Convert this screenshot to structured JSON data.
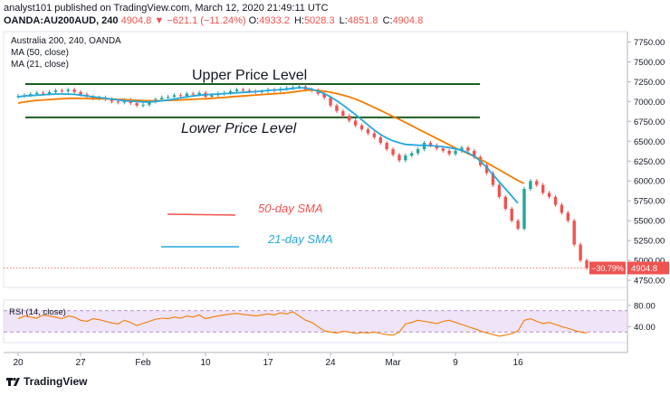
{
  "header": {
    "publisher": "analyst101 published on TradingView.com, March 12, 2020 21:49:11 UTC",
    "symbol": "OANDA:AU200AUD, 240",
    "last": "4904.8",
    "change": "−621.1 (−11.24%)",
    "o_label": "O:",
    "o": "4933.2",
    "h_label": "H:",
    "h": "5028.3",
    "l_label": "L:",
    "l": "4851.8",
    "c_label": "C:",
    "c": "4904.8"
  },
  "legend": {
    "title": "Australia 200, 240, OANDA",
    "ma50": "MA (50, close)",
    "ma21": "MA (21, close)",
    "rsi": "RSI (14, close)"
  },
  "annotations": {
    "upper": "Upper  Price Level",
    "lower": "Lower Price Level",
    "sma50": "50-day SMA",
    "sma21": "21-day SMA"
  },
  "price_label": {
    "pct": "−30.79%",
    "value": "4904.8"
  },
  "branding": "TradingView",
  "colors": {
    "up": "#26a69a",
    "down": "#ef5350",
    "ma50": "#f57c00",
    "ma21": "#26a8dc",
    "level": "#1b5e20",
    "rsi_line": "#f57c00",
    "rsi_band": "#e9d8f5",
    "rsi_border": "#9c6fc1"
  },
  "chart_data": {
    "type": "line",
    "yticks": [
      7750,
      7500,
      7250,
      7000,
      6750,
      6500,
      6250,
      6000,
      5750,
      5500,
      5250,
      5000,
      4750
    ],
    "ylim": [
      4660,
      7880
    ],
    "xticks": [
      "20",
      "27",
      "Feb",
      "10",
      "17",
      "24",
      "Mar",
      "9",
      "16"
    ],
    "xtick_idx": [
      0,
      10,
      20,
      30,
      40,
      50,
      60,
      70,
      80
    ],
    "upper_level": 7220,
    "lower_level": 6800,
    "close": [
      7070,
      7080,
      7095,
      7110,
      7100,
      7120,
      7140,
      7130,
      7150,
      7120,
      7090,
      7060,
      7040,
      7050,
      7030,
      7000,
      6990,
      7020,
      6980,
      6950,
      6960,
      7000,
      7030,
      7050,
      7060,
      7080,
      7070,
      7100,
      7090,
      7110,
      7060,
      7080,
      7100,
      7110,
      7130,
      7150,
      7140,
      7130,
      7120,
      7130,
      7150,
      7140,
      7160,
      7170,
      7180,
      7190,
      7150,
      7140,
      7100,
      7050,
      6950,
      6880,
      6820,
      6760,
      6700,
      6650,
      6600,
      6550,
      6480,
      6400,
      6330,
      6260,
      6320,
      6350,
      6400,
      6480,
      6450,
      6410,
      6380,
      6340,
      6380,
      6420,
      6380,
      6300,
      6200,
      6100,
      5950,
      5800,
      5650,
      5500,
      5400,
      5900,
      6000,
      5950,
      5850,
      5800,
      5700,
      5600,
      5500,
      5200,
      5000,
      4904.8
    ],
    "ma50": [
      6980,
      6995,
      7005,
      7015,
      7020,
      7025,
      7030,
      7035,
      7040,
      7042,
      7040,
      7038,
      7036,
      7035,
      7034,
      7032,
      7028,
      7025,
      7020,
      7016,
      7012,
      7010,
      7010,
      7012,
      7014,
      7017,
      7020,
      7024,
      7028,
      7032,
      7035,
      7040,
      7046,
      7052,
      7058,
      7064,
      7070,
      7076,
      7082,
      7088,
      7093,
      7098,
      7103,
      7110,
      7120,
      7130,
      7140,
      7145,
      7140,
      7130,
      7118,
      7100,
      7080,
      7058,
      7030,
      6998,
      6962,
      6925,
      6888,
      6850,
      6812,
      6775,
      6735,
      6695,
      6655,
      6615,
      6575,
      6535,
      6495,
      6455,
      6415,
      6380,
      6345,
      6310,
      6270,
      6230,
      6185,
      6140,
      6095,
      6050,
      6005,
      5970
    ],
    "ma21": [
      7060,
      7070,
      7075,
      7080,
      7085,
      7090,
      7095,
      7095,
      7093,
      7090,
      7080,
      7070,
      7060,
      7050,
      7040,
      7030,
      7020,
      7010,
      7005,
      7000,
      6995,
      6995,
      7000,
      7010,
      7020,
      7030,
      7045,
      7060,
      7070,
      7080,
      7085,
      7090,
      7095,
      7100,
      7105,
      7110,
      7115,
      7120,
      7125,
      7130,
      7140,
      7145,
      7150,
      7155,
      7165,
      7175,
      7170,
      7155,
      7130,
      7100,
      7060,
      7010,
      6955,
      6895,
      6835,
      6770,
      6705,
      6640,
      6585,
      6540,
      6505,
      6480,
      6460,
      6455,
      6450,
      6448,
      6445,
      6440,
      6430,
      6420,
      6405,
      6385,
      6355,
      6310,
      6250,
      6170,
      6080,
      5990,
      5900,
      5810,
      5720
    ],
    "rsi": [
      55,
      60,
      58,
      56,
      62,
      60,
      58,
      55,
      60,
      58,
      52,
      50,
      55,
      53,
      50,
      47,
      45,
      52,
      48,
      42,
      46,
      50,
      54,
      56,
      55,
      58,
      56,
      60,
      58,
      62,
      55,
      58,
      60,
      62,
      64,
      65,
      63,
      62,
      60,
      62,
      64,
      62,
      66,
      64,
      68,
      60,
      52,
      48,
      40,
      32,
      30,
      28,
      31,
      30,
      27,
      29,
      28,
      30,
      27,
      25,
      24,
      30,
      45,
      48,
      52,
      50,
      48,
      46,
      50,
      52,
      48,
      44,
      40,
      36,
      32,
      28,
      25,
      22,
      24,
      27,
      32,
      52,
      55,
      50,
      46,
      48,
      44,
      40,
      37,
      33,
      30,
      28
    ],
    "rsi_ticks": [
      80,
      40
    ],
    "rsi_band": [
      70,
      30
    ],
    "rsi_ylim": [
      10,
      90
    ]
  }
}
